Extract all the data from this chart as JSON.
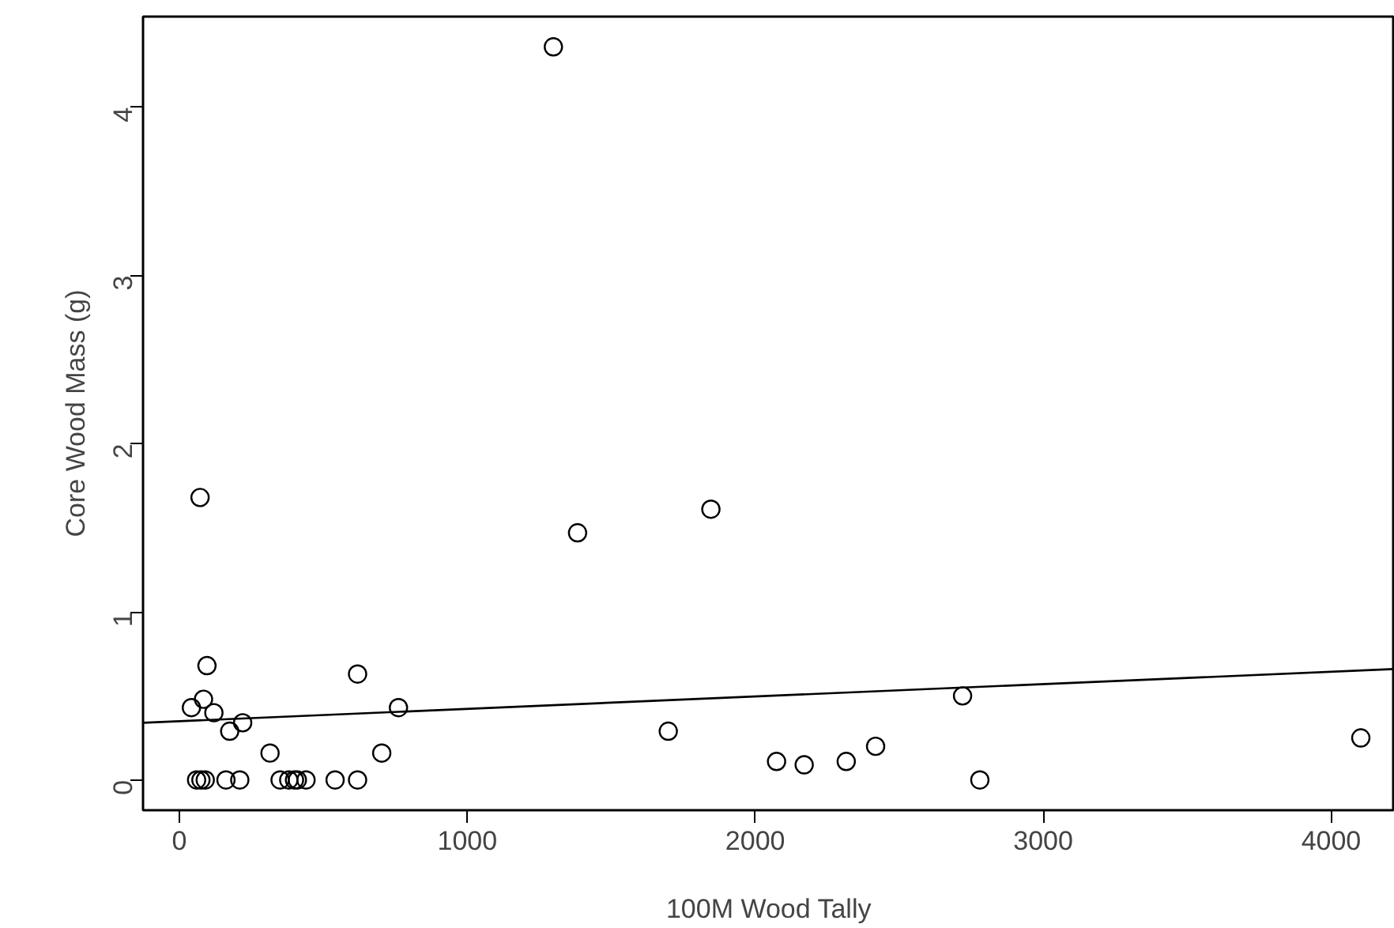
{
  "chart_data": {
    "type": "scatter",
    "xlabel": "100M Wood Tally",
    "ylabel": "Core Wood Mass (g)",
    "xlim": [
      -126,
      4221
    ],
    "ylim": [
      -0.18,
      4.54
    ],
    "xticks": [
      0,
      1000,
      2000,
      3000,
      4000
    ],
    "yticks": [
      0,
      1,
      2,
      3,
      4
    ],
    "grid": false,
    "marker": "circle",
    "series": [
      {
        "color": "#000000",
        "x": [
          1299,
          72,
          1383,
          1846,
          96,
          619,
          761,
          42,
          84,
          120,
          175,
          220,
          315,
          703,
          1698,
          2074,
          2170,
          2316,
          2418,
          2720,
          2780,
          4103,
          60,
          75,
          90,
          162,
          210,
          350,
          380,
          400,
          410,
          440,
          541,
          619
        ],
        "values": [
          4.36,
          1.68,
          1.47,
          1.61,
          0.68,
          0.63,
          0.43,
          0.43,
          0.48,
          0.4,
          0.29,
          0.34,
          0.16,
          0.16,
          0.29,
          0.11,
          0.09,
          0.11,
          0.2,
          0.5,
          0,
          0.25,
          0,
          0,
          0,
          0,
          0,
          0,
          0,
          0,
          0,
          0,
          0,
          0
        ]
      },
      {
        "type": "line",
        "marker": "none",
        "color": "#000000",
        "x": [
          -126,
          4221
        ],
        "values": [
          0.34,
          0.66
        ]
      }
    ]
  }
}
